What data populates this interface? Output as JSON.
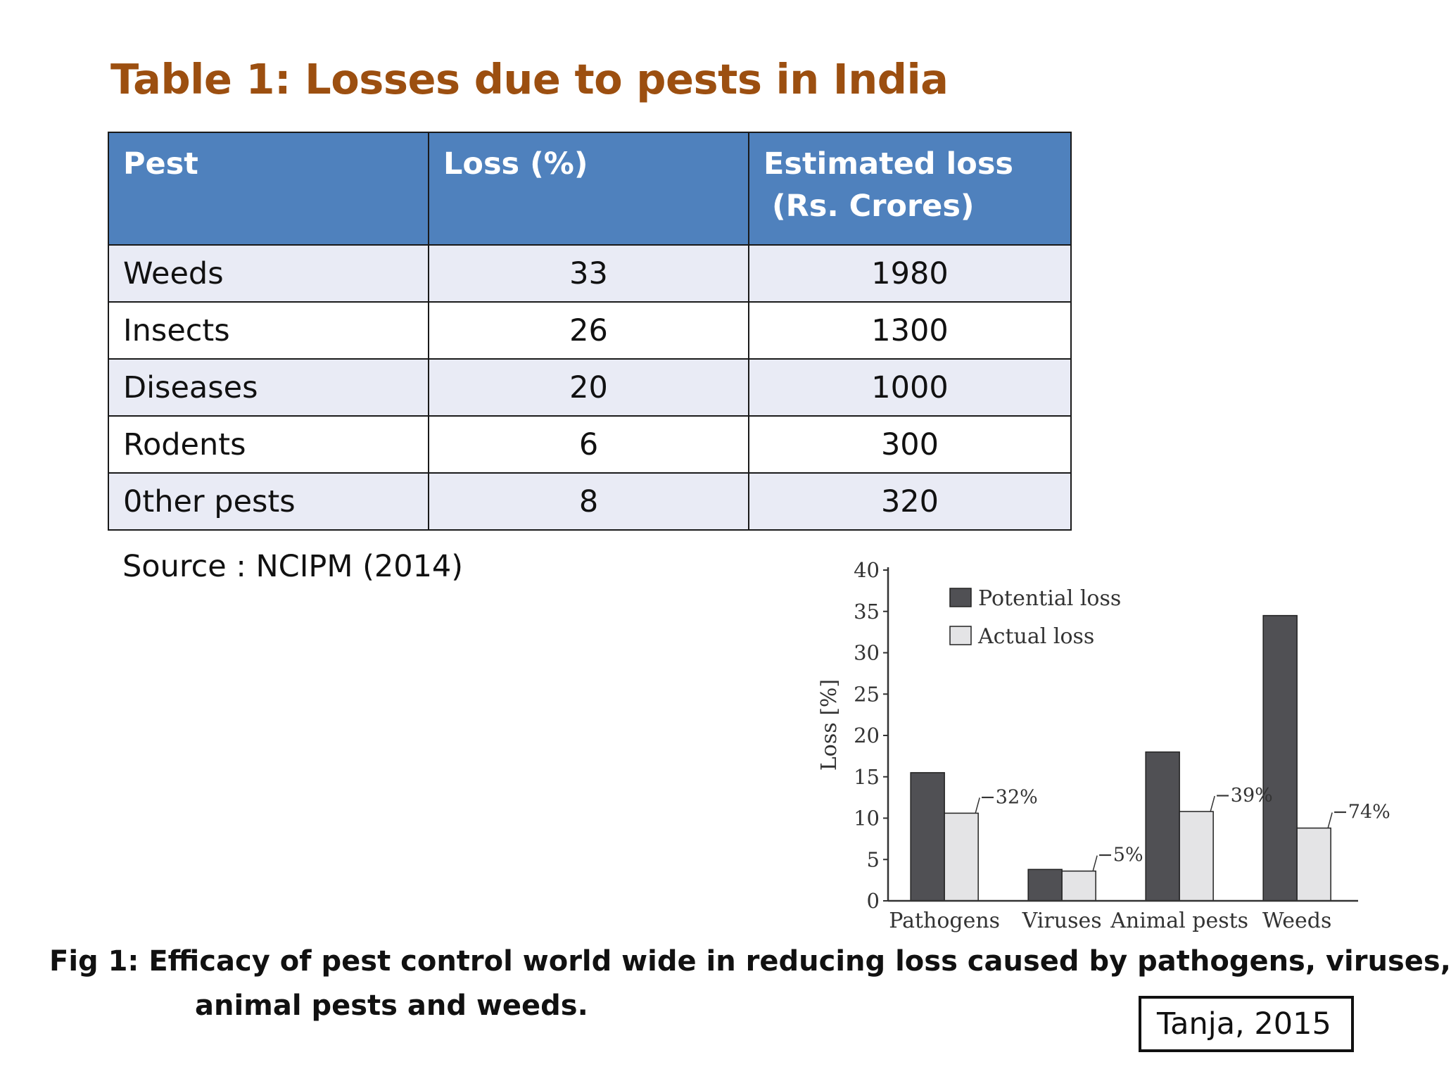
{
  "title": "Table 1: Losses due to pests in India",
  "table": {
    "headers": [
      "Pest",
      "Loss (%)",
      "Estimated loss",
      "(Rs. Crores)"
    ],
    "rows": [
      {
        "pest": "Weeds",
        "loss": "33",
        "estimated": "1980"
      },
      {
        "pest": "Insects",
        "loss": "26",
        "estimated": "1300"
      },
      {
        "pest": "Diseases",
        "loss": "20",
        "estimated": "1000"
      },
      {
        "pest": "Rodents",
        "loss": "6",
        "estimated": "300"
      },
      {
        "pest": "0ther pests",
        "loss": "8",
        "estimated": "320"
      }
    ]
  },
  "source": "Source : NCIPM (2014)",
  "chart_data": {
    "type": "bar",
    "ylabel": "Loss [%]",
    "xlabel": "",
    "ylim": [
      0,
      40
    ],
    "yticks": [
      0,
      5,
      10,
      15,
      20,
      25,
      30,
      35,
      40
    ],
    "categories": [
      "Pathogens",
      "Viruses",
      "Animal pests",
      "Weeds"
    ],
    "series": [
      {
        "name": "Potential loss",
        "values": [
          15.5,
          3.8,
          18,
          34.5
        ],
        "color": "#505054"
      },
      {
        "name": "Actual loss",
        "values": [
          10.6,
          3.6,
          10.8,
          8.8
        ],
        "color": "#e4e4e6"
      }
    ],
    "annotations": [
      "−32%",
      "−5%",
      "−39%",
      "−74%"
    ],
    "legend_position": "top-left",
    "grid": false
  },
  "caption_line1": "Fig 1: Efficacy of pest control world wide in reducing loss caused by pathogens, viruses,",
  "caption_line2": "animal pests and weeds.",
  "citation": "Tanja, 2015",
  "colors": {
    "title": "#9c4f10",
    "header_bg": "#4f81bd",
    "row_alt": "#e9ebf5"
  }
}
